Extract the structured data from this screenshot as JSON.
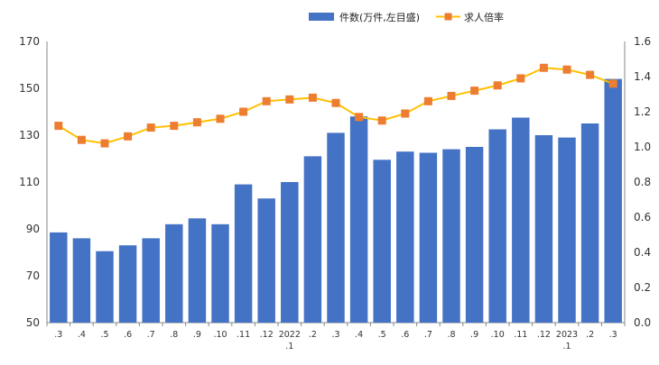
{
  "chart_data": {
    "type": "bar+line",
    "categories": [
      ".3",
      ".4",
      ".5",
      ".6",
      ".7",
      ".8",
      ".9",
      ".10",
      ".11",
      ".12",
      "2022\n.1",
      ".2",
      ".3",
      ".4",
      ".5",
      ".6",
      ".7",
      ".8",
      ".9",
      ".10",
      ".11",
      ".12",
      "2023\n.1",
      ".2",
      ".3"
    ],
    "series": [
      {
        "name": "件数(万件,左目盛)",
        "type": "bar",
        "axis": "left",
        "color": "#4472c4",
        "values": [
          88.5,
          86,
          80.5,
          83,
          86,
          92,
          94.5,
          92,
          109,
          103,
          110,
          121,
          131,
          138,
          119.5,
          123,
          122.5,
          124,
          125,
          132.5,
          137.5,
          130,
          129,
          135,
          154
        ]
      },
      {
        "name": "求人倍率",
        "type": "line",
        "axis": "right",
        "color": "#ffc000",
        "marker_color": "#ed7d31",
        "values": [
          1.12,
          1.04,
          1.02,
          1.06,
          1.11,
          1.12,
          1.14,
          1.16,
          1.2,
          1.26,
          1.27,
          1.28,
          1.25,
          1.17,
          1.15,
          1.19,
          1.26,
          1.29,
          1.32,
          1.35,
          1.39,
          1.45,
          1.44,
          1.41,
          1.36
        ]
      }
    ],
    "y_left": {
      "min": 50,
      "max": 170,
      "ticks": [
        "50",
        "70",
        "90",
        "110",
        "130",
        "150",
        "170"
      ]
    },
    "y_right": {
      "min": 0,
      "max": 1.6,
      "ticks": [
        "0.0",
        "0.2",
        "0.4",
        "0.6",
        "0.8",
        "1.0",
        "1.2",
        "1.4",
        "1.6"
      ]
    },
    "grid": false,
    "legend_position": "top-right"
  }
}
